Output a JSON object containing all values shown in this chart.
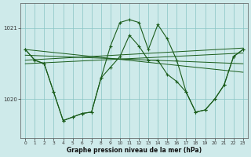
{
  "xlabel": "Graphe pression niveau de la mer (hPa)",
  "bg_color": "#ceeaea",
  "line_color": "#1a5c1a",
  "grid_color": "#88c4c4",
  "y_ticks": [
    1020,
    1021
  ],
  "ylim": [
    1019.45,
    1021.35
  ],
  "xlim": [
    -0.5,
    23.5
  ],
  "series1_x": [
    0,
    1,
    2,
    3,
    4,
    5,
    6,
    7,
    8,
    9,
    10,
    11,
    12,
    13,
    14,
    15,
    16,
    17,
    18,
    19,
    20,
    21,
    22,
    23
  ],
  "series1_y": [
    1020.7,
    1020.55,
    1020.5,
    1020.1,
    1019.7,
    1019.75,
    1019.8,
    1019.82,
    1020.3,
    1020.75,
    1021.08,
    1021.12,
    1021.08,
    1020.7,
    1021.05,
    1020.85,
    1020.55,
    1020.1,
    1019.82,
    1019.85,
    1020.0,
    1020.2,
    1020.6,
    1020.7
  ],
  "series2_x": [
    0,
    1,
    2,
    3,
    4,
    5,
    6,
    7,
    8,
    9,
    10,
    11,
    12,
    13,
    14,
    15,
    16,
    17,
    18,
    19,
    20,
    21,
    22,
    23
  ],
  "series2_y": [
    1020.7,
    1020.55,
    1020.5,
    1020.1,
    1019.7,
    1019.75,
    1019.8,
    1019.82,
    1020.3,
    1020.45,
    1020.6,
    1020.9,
    1020.75,
    1020.55,
    1020.55,
    1020.35,
    1020.25,
    1020.1,
    1019.82,
    1019.85,
    1020.0,
    1020.2,
    1020.6,
    1020.7
  ],
  "trend1_x": [
    0,
    23
  ],
  "trend1_y": [
    1020.7,
    1020.38
  ],
  "trend2_x": [
    0,
    23
  ],
  "trend2_y": [
    1020.55,
    1020.72
  ],
  "trend3_x": [
    0,
    23
  ],
  "trend3_y": [
    1020.62,
    1020.5
  ],
  "trend4_x": [
    0,
    23
  ],
  "trend4_y": [
    1020.5,
    1020.65
  ]
}
